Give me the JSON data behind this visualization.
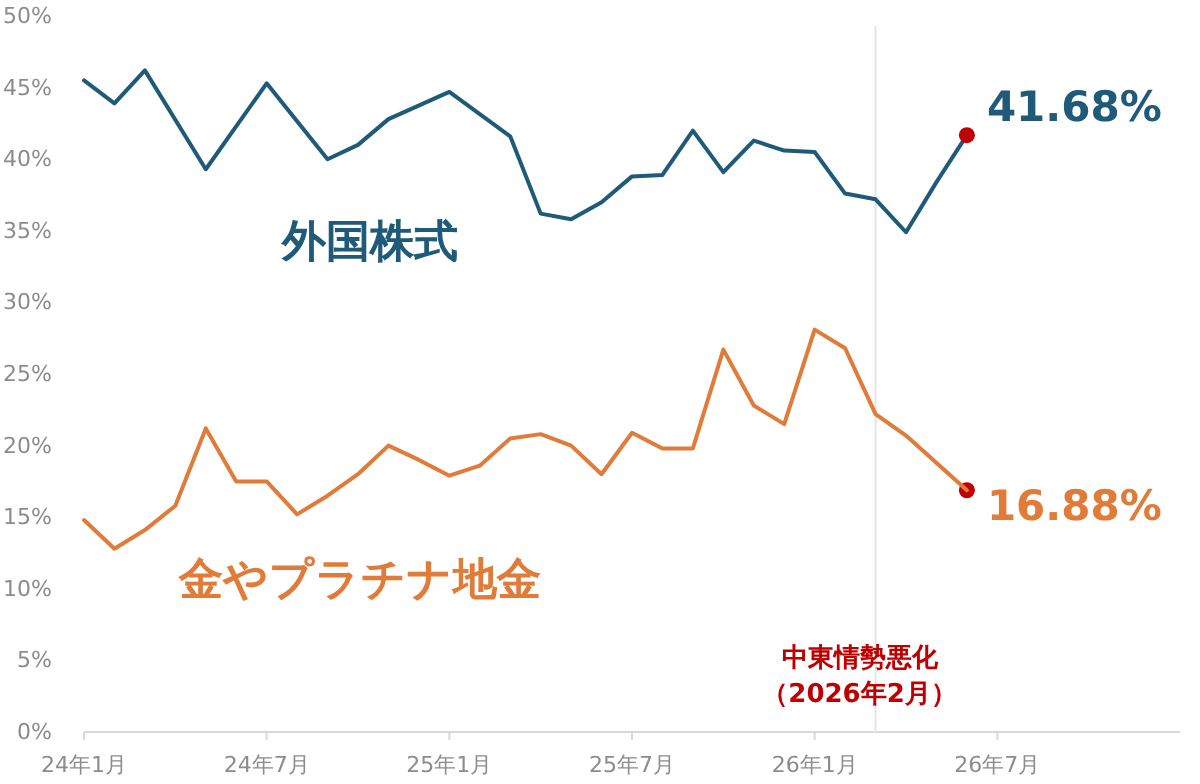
{
  "chart_data": {
    "type": "line",
    "series": [
      {
        "name": "外国株式",
        "color": "#1f5a78",
        "x": [
          "2024-01",
          "2024-02",
          "2024-03",
          "2024-05",
          "2024-07",
          "2024-09",
          "2024-10",
          "2024-11",
          "2025-01",
          "2025-03",
          "2025-04",
          "2025-05",
          "2025-06",
          "2025-07",
          "2025-08",
          "2025-09",
          "2025-10",
          "2025-11",
          "2025-12",
          "2026-01",
          "2026-02",
          "2026-03",
          "2026-04",
          "2026-05",
          "2026-06"
        ],
        "values": [
          45.5,
          43.9,
          46.2,
          39.3,
          45.3,
          40.0,
          41.0,
          42.8,
          44.7,
          41.6,
          36.2,
          35.8,
          37.0,
          38.8,
          38.9,
          42.0,
          39.1,
          41.3,
          40.6,
          40.5,
          37.6,
          37.2,
          34.9,
          38.4,
          41.68
        ]
      },
      {
        "type": "scatter",
        "color": "#c00000",
        "x": [
          "2026-06",
          "2026-06"
        ],
        "values": [
          41.68,
          16.88
        ]
      },
      {
        "name": "金やプラチナ地金",
        "color": "#e07b39",
        "x": [
          "2024-01",
          "2024-02",
          "2024-03",
          "2024-04",
          "2024-05",
          "2024-06",
          "2024-07",
          "2024-08",
          "2024-09",
          "2024-10",
          "2024-11",
          "2024-12",
          "2025-01",
          "2025-02",
          "2025-03",
          "2025-04",
          "2025-05",
          "2025-06",
          "2025-07",
          "2025-08",
          "2025-09",
          "2025-10",
          "2025-11",
          "2025-12",
          "2026-01",
          "2026-02",
          "2026-03",
          "2026-04",
          "2026-06"
        ],
        "values": [
          14.8,
          12.8,
          14.1,
          15.8,
          21.2,
          17.5,
          17.5,
          15.2,
          16.5,
          18.0,
          20.0,
          19.0,
          17.9,
          18.6,
          20.5,
          20.8,
          20.0,
          18.0,
          20.9,
          19.8,
          19.8,
          26.7,
          22.8,
          21.5,
          28.1,
          26.8,
          22.2,
          20.7,
          16.88
        ]
      }
    ],
    "xlim": [
      "2024-01",
      "2027-01"
    ],
    "xticks": [
      {
        "value": "2024-01",
        "label": "24年1月"
      },
      {
        "value": "2024-07",
        "label": "24年7月"
      },
      {
        "value": "2025-01",
        "label": "25年1月"
      },
      {
        "value": "2025-07",
        "label": "25年7月"
      },
      {
        "value": "2026-01",
        "label": "26年1月"
      },
      {
        "value": "2026-07",
        "label": "26年7月"
      }
    ],
    "ylim": [
      0,
      50
    ],
    "yticks": [
      {
        "value": 0,
        "label": "0%"
      },
      {
        "value": 5,
        "label": "5%"
      },
      {
        "value": 10,
        "label": "10%"
      },
      {
        "value": 15,
        "label": "15%"
      },
      {
        "value": 20,
        "label": "20%"
      },
      {
        "value": 25,
        "label": "25%"
      },
      {
        "value": 30,
        "label": "30%"
      },
      {
        "value": 35,
        "label": "35%"
      },
      {
        "value": 40,
        "label": "40%"
      },
      {
        "value": 45,
        "label": "45%"
      },
      {
        "value": 50,
        "label": "50%"
      }
    ],
    "ref_lines": [
      {
        "axis": "x",
        "value": "2026-03",
        "label": "中東情勢悪化"
      }
    ],
    "annotations": [
      "（2026年2月）",
      {
        "text": "41.68%",
        "x": "2026-06",
        "y": 41.68
      },
      {
        "text": "16.88%",
        "x": "2026-06",
        "y": 16.88
      }
    ]
  }
}
